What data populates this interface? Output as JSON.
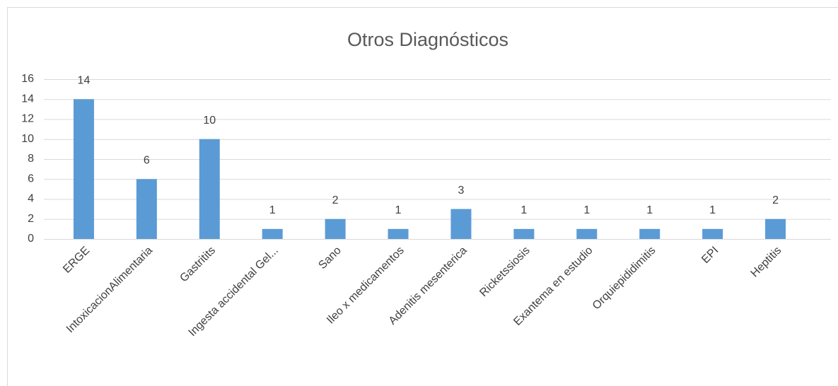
{
  "chart_data": {
    "type": "bar",
    "title": "Otros Diagnósticos",
    "categories": [
      "ERGE",
      "IntoxicacionAlimentaria",
      "Gastritits",
      "Ingesta accidental Gel...",
      "Sano",
      "Ileo x medicamentos",
      "Adenitis mesenterica",
      "Ricketssiosis",
      "Exantema en estudio",
      "Orquiepididimitis",
      "EPI",
      "Heptitis"
    ],
    "values": [
      14,
      6,
      10,
      1,
      2,
      1,
      3,
      1,
      1,
      1,
      1,
      2
    ],
    "color": "#5b9bd5",
    "ylim": [
      0,
      16
    ],
    "yticks": [
      0,
      2,
      4,
      6,
      8,
      10,
      12,
      14,
      16
    ],
    "grid": true
  }
}
